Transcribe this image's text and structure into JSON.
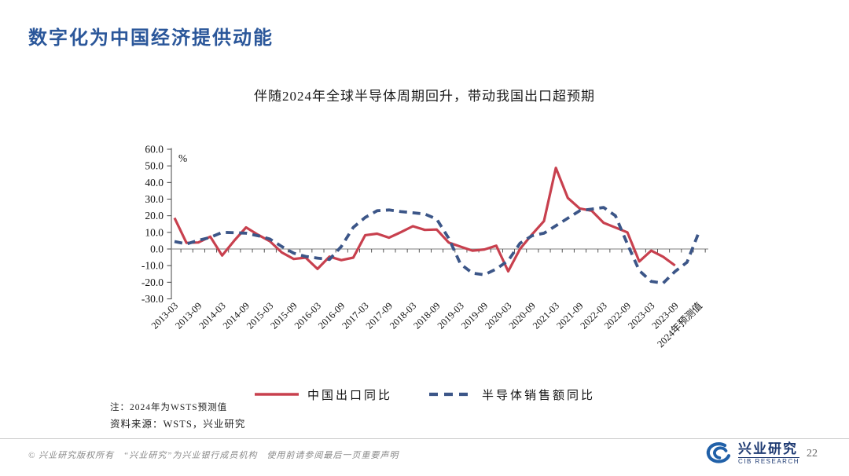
{
  "page": {
    "title": "数字化为中国经济提供动能"
  },
  "chart_data": {
    "type": "line",
    "title": "伴随2024年全球半导体周期回升，带动我国出口超预期",
    "unit_label": "%",
    "ylim": [
      -30,
      60
    ],
    "grid": false,
    "legend_position": "bottom",
    "y_ticks": [
      "60.0",
      "50.0",
      "40.0",
      "30.0",
      "20.0",
      "10.0",
      "0.0",
      "-10.0",
      "-20.0",
      "-30.0"
    ],
    "x_tick_labels": [
      "2013-03",
      "2013-09",
      "2014-03",
      "2014-09",
      "2015-03",
      "2015-09",
      "2016-03",
      "2016-09",
      "2017-03",
      "2017-09",
      "2018-03",
      "2018-09",
      "2019-03",
      "2019-09",
      "2020-03",
      "2020-09",
      "2021-03",
      "2021-09",
      "2022-03",
      "2022-09",
      "2023-03",
      "2023-09",
      "2024年预测值"
    ],
    "categories": [
      "2013-03",
      "2013-06",
      "2013-09",
      "2013-12",
      "2014-03",
      "2014-06",
      "2014-09",
      "2014-12",
      "2015-03",
      "2015-06",
      "2015-09",
      "2015-12",
      "2016-03",
      "2016-06",
      "2016-09",
      "2016-12",
      "2017-03",
      "2017-06",
      "2017-09",
      "2017-12",
      "2018-03",
      "2018-06",
      "2018-09",
      "2018-12",
      "2019-03",
      "2019-06",
      "2019-09",
      "2019-12",
      "2020-03",
      "2020-06",
      "2020-09",
      "2020-12",
      "2021-03",
      "2021-06",
      "2021-09",
      "2021-12",
      "2022-03",
      "2022-06",
      "2022-09",
      "2022-12",
      "2023-03",
      "2023-06",
      "2023-09",
      "2023-12",
      "2024年预测值"
    ],
    "series": [
      {
        "name": "中国出口同比",
        "color": "#C8404E",
        "style": "solid",
        "values": [
          18.7,
          3.7,
          3.9,
          7.4,
          -3.9,
          4.9,
          13.0,
          8.6,
          4.7,
          -2.1,
          -6.0,
          -5.2,
          -12.0,
          -4.6,
          -6.7,
          -5.2,
          8.3,
          9.2,
          6.8,
          10.1,
          13.7,
          11.5,
          11.7,
          3.9,
          1.4,
          -1.0,
          -0.3,
          2.0,
          -13.4,
          0.1,
          8.8,
          16.8,
          48.8,
          30.7,
          24.4,
          23.0,
          15.8,
          12.9,
          10.0,
          -7.5,
          -1.0,
          -4.7,
          -9.9
        ]
      },
      {
        "name": "半导体销售额同比",
        "color": "#3C5688",
        "style": "dashed",
        "values": [
          4.5,
          3.0,
          5.2,
          7.0,
          10.0,
          9.8,
          9.5,
          8.0,
          6.0,
          1.5,
          -2.5,
          -4.5,
          -5.5,
          -6.3,
          1.5,
          13.0,
          19.0,
          23.0,
          23.5,
          22.5,
          21.8,
          21.0,
          18.0,
          6.5,
          -9.0,
          -14.5,
          -15.5,
          -12.0,
          -7.0,
          3.5,
          8.0,
          9.5,
          14.0,
          18.5,
          23.0,
          24.0,
          25.0,
          20.0,
          3.0,
          -13.0,
          -19.5,
          -20.5,
          -13.5,
          -8.0,
          10.0
        ]
      }
    ]
  },
  "notes": {
    "note": "注：2024年为WSTS预测值",
    "source": "资料来源：WSTS，兴业研究"
  },
  "footer": {
    "copyright": "©  兴业研究版权所有　“兴业研究”为兴业银行成员机构　使用前请参阅最后一页重要声明",
    "brand_cn": "兴业研究",
    "brand_en": "CIB RESEARCH",
    "page_number": "22"
  }
}
